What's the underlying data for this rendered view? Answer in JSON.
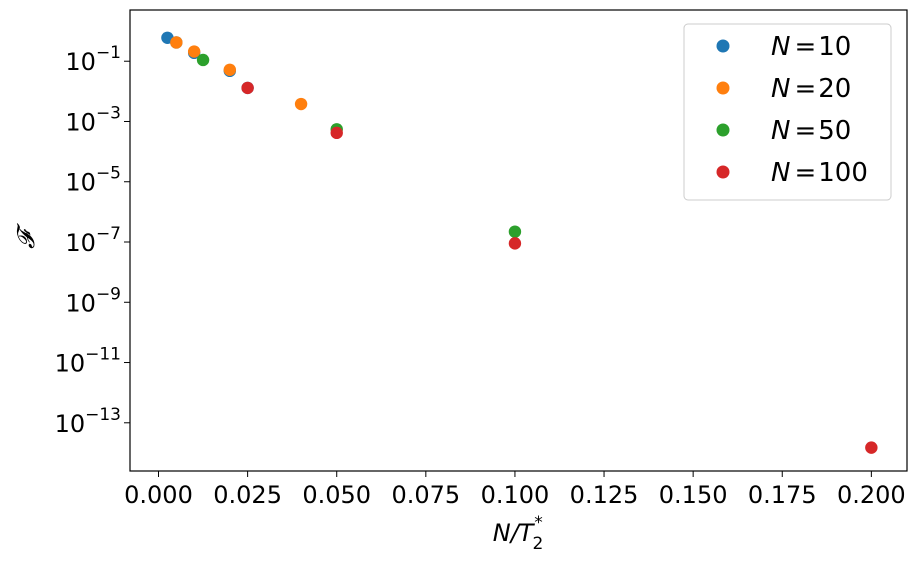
{
  "chart_data": {
    "type": "scatter",
    "title": "",
    "xlabel": "N/T",
    "xlabel_sub": "2",
    "xlabel_sup": "*",
    "ylabel": "𝓕",
    "y_scale": "log",
    "xlim": [
      -0.008,
      0.21
    ],
    "ylim_log10": [
      -14.6,
      0.7
    ],
    "x_ticks": [
      {
        "value": 0.0,
        "label": "0.000"
      },
      {
        "value": 0.025,
        "label": "0.025"
      },
      {
        "value": 0.05,
        "label": "0.050"
      },
      {
        "value": 0.075,
        "label": "0.075"
      },
      {
        "value": 0.1,
        "label": "0.100"
      },
      {
        "value": 0.125,
        "label": "0.125"
      },
      {
        "value": 0.15,
        "label": "0.150"
      },
      {
        "value": 0.175,
        "label": "0.175"
      },
      {
        "value": 0.2,
        "label": "0.200"
      }
    ],
    "y_ticks": [
      {
        "exp": -1,
        "base": "10",
        "sup": "−1"
      },
      {
        "exp": -3,
        "base": "10",
        "sup": "−3"
      },
      {
        "exp": -5,
        "base": "10",
        "sup": "−5"
      },
      {
        "exp": -7,
        "base": "10",
        "sup": "−7"
      },
      {
        "exp": -9,
        "base": "10",
        "sup": "−9"
      },
      {
        "exp": -11,
        "base": "10",
        "sup": "−11"
      },
      {
        "exp": -13,
        "base": "10",
        "sup": "−13"
      }
    ],
    "legend_position": "top-right",
    "series": [
      {
        "name": "N = 10",
        "var": "N",
        "value": "10",
        "color": "#1f77b4",
        "points": [
          [
            0.0025,
            0.6
          ],
          [
            0.005,
            0.42
          ],
          [
            0.01,
            0.19
          ],
          [
            0.02,
            0.048
          ],
          [
            0.025,
            0.013
          ]
        ]
      },
      {
        "name": "N = 20",
        "var": "N",
        "value": "20",
        "color": "#ff7f0e",
        "points": [
          [
            0.005,
            0.42
          ],
          [
            0.01,
            0.21
          ],
          [
            0.02,
            0.052
          ],
          [
            0.04,
            0.0038
          ]
        ]
      },
      {
        "name": "N = 50",
        "var": "N",
        "value": "50",
        "color": "#2ca02c",
        "points": [
          [
            0.0125,
            0.11
          ],
          [
            0.05,
            0.00055
          ],
          [
            0.1,
            2.2e-07
          ]
        ]
      },
      {
        "name": "N = 100",
        "var": "N",
        "value": "100",
        "color": "#d62728",
        "points": [
          [
            0.025,
            0.013
          ],
          [
            0.05,
            0.00042
          ],
          [
            0.1,
            9e-08
          ],
          [
            0.2,
            1.5e-14
          ]
        ]
      }
    ]
  }
}
